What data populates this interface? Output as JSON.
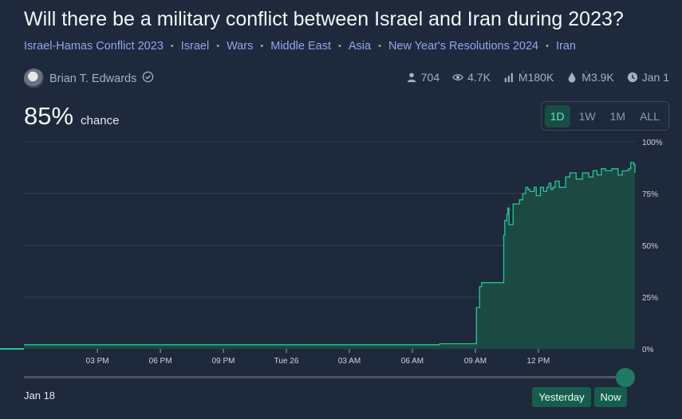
{
  "market": {
    "title": "Will there be a military conflict between Israel and Iran during 2023?",
    "tags": [
      "Israel-Hamas Conflict 2023",
      "Israel",
      "Wars",
      "Middle East",
      "Asia",
      "New Year's Resolutions 2024",
      "Iran"
    ],
    "author": "Brian T. Edwards",
    "author_icon": "verified-check-icon",
    "probability": "85%",
    "probability_label": "chance"
  },
  "stats": {
    "traders": "704",
    "views": "4.7K",
    "volume": "Ṁ180K",
    "liquidity": "Ṁ3.9K",
    "close_date": "Jan 1"
  },
  "range_buttons": [
    {
      "label": "1D",
      "active": true
    },
    {
      "label": "1W",
      "active": false
    },
    {
      "label": "1M",
      "active": false
    },
    {
      "label": "ALL",
      "active": false
    }
  ],
  "slider": {
    "start_label": "Jan 18",
    "yesterday_label": "Yesterday",
    "now_label": "Now",
    "position": 1.0
  },
  "colors": {
    "background": "#1e293b",
    "accent": "#20c997",
    "tag": "#93a4f5"
  },
  "chart_data": {
    "type": "area",
    "y_ticks": [
      "0%",
      "25%",
      "50%",
      "75%",
      "100%"
    ],
    "ylim": [
      0,
      100
    ],
    "x_ticks": [
      "03 PM",
      "06 PM",
      "09 PM",
      "Tue 26",
      "03 AM",
      "06 AM",
      "09 AM",
      "12 PM"
    ],
    "x_range_hours": [
      12.0,
      37.0
    ],
    "series": [
      {
        "x": [
          12.0,
          18.0,
          24.0,
          30.0,
          31.5,
          33.2,
          33.25,
          33.4,
          33.5,
          33.7,
          33.85,
          33.9,
          34.4,
          34.55,
          34.6,
          34.7,
          34.75,
          34.8,
          35.0,
          35.2,
          35.3,
          35.45,
          35.6,
          35.7,
          35.8,
          36.0,
          36.1,
          36.3,
          36.45,
          36.6,
          36.7,
          36.8,
          36.9,
          37.0,
          37.2,
          37.5,
          37.7,
          38.0,
          38.3,
          38.6,
          38.8,
          39.0,
          39.2,
          39.4,
          39.7,
          40.0,
          40.2,
          40.5,
          40.6,
          40.75,
          40.8
        ],
        "y": [
          2,
          2,
          2,
          2,
          2.5,
          2.5,
          20,
          30,
          32,
          32,
          32,
          32,
          32,
          55,
          62,
          65,
          68,
          60,
          70,
          70,
          72,
          75,
          78,
          77,
          76,
          78,
          74,
          78,
          76,
          78,
          80,
          77,
          78,
          81,
          78,
          83,
          85,
          82,
          85,
          83,
          86,
          84,
          87,
          86,
          87,
          84,
          86,
          87,
          90,
          89,
          85
        ]
      }
    ]
  }
}
